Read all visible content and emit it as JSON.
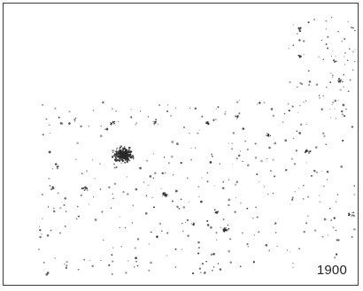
{
  "map": {
    "year_label": "1900",
    "dot_color": "#2a2a2a",
    "background_color": "#ffffff",
    "frame_color": "#3a3a3a"
  }
}
